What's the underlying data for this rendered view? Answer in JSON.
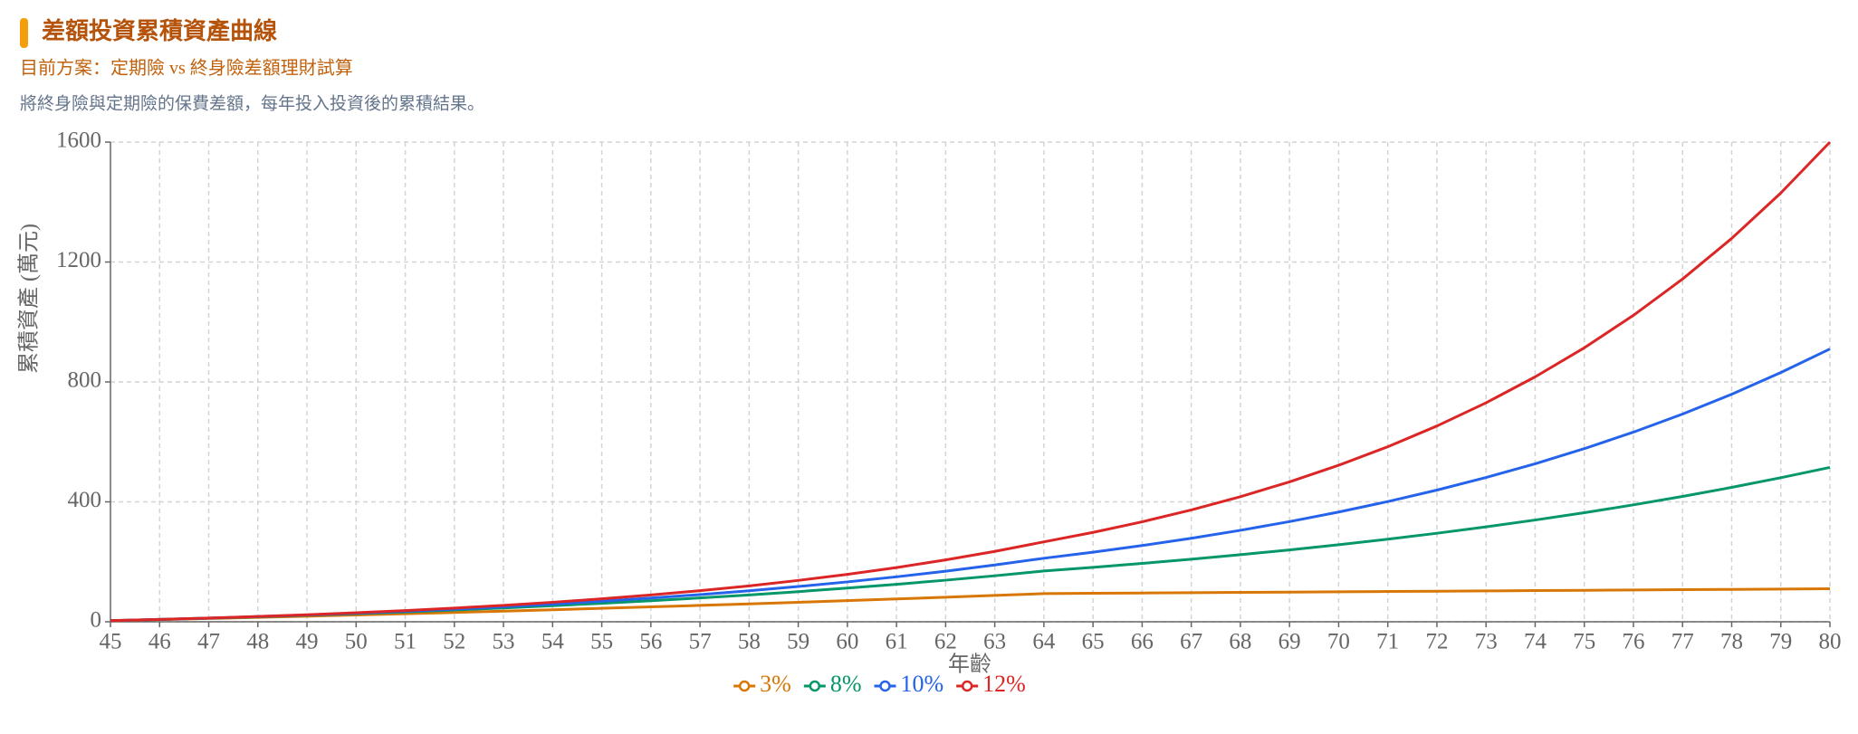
{
  "chart_data": {
    "type": "line",
    "title": "差額投資累積資產曲線",
    "subtitle": "目前方案：定期險 vs 終身險差額理財試算",
    "description": "將終身險與定期險的保費差額，每年投入投資後的累積結果。",
    "x_label": "年齡",
    "y_label": "累積資產 (萬元)",
    "x": [
      45,
      46,
      47,
      48,
      49,
      50,
      51,
      52,
      53,
      54,
      55,
      56,
      57,
      58,
      59,
      60,
      61,
      62,
      63,
      64,
      65,
      66,
      67,
      68,
      69,
      70,
      71,
      72,
      73,
      74,
      75,
      76,
      77,
      78,
      79,
      80
    ],
    "xlim": [
      45,
      80
    ],
    "ylim": [
      0,
      1600
    ],
    "yticks": [
      0,
      400,
      800,
      1200,
      1600
    ],
    "grid": true,
    "legend": "bottom",
    "series": [
      {
        "name": "3%",
        "color": "#d97706",
        "values": [
          3.5,
          7.1,
          10.8,
          14.6,
          18.6,
          22.6,
          26.8,
          31.1,
          35.6,
          40.1,
          44.8,
          49.7,
          54.7,
          59.8,
          65.1,
          70.6,
          76.2,
          81.9,
          87.9,
          94,
          95,
          96,
          97,
          98,
          99,
          100,
          101,
          102,
          103,
          104,
          105,
          106,
          107,
          108,
          109,
          110
        ]
      },
      {
        "name": "8%",
        "color": "#059669",
        "values": [
          3.7,
          7.7,
          12,
          16.7,
          21.7,
          27.1,
          33,
          39.4,
          46.2,
          53.6,
          61.6,
          70.2,
          79.5,
          89.6,
          100.5,
          112.3,
          125,
          138.7,
          153.4,
          169.3,
          181.5,
          194.6,
          208.6,
          223.6,
          239.7,
          257,
          275.5,
          295.3,
          316.6,
          339.4,
          363.8,
          390,
          418.1,
          448.2,
          480.5,
          515
        ]
      },
      {
        "name": "10%",
        "color": "#2563eb",
        "values": [
          3.7,
          7.8,
          12.2,
          17.2,
          22.6,
          28.5,
          35.1,
          42.3,
          50.2,
          59,
          68.6,
          79.2,
          90.7,
          103.5,
          117.6,
          133,
          150,
          168.7,
          189.3,
          211.9,
          232.1,
          254.3,
          278.5,
          305.1,
          334.2,
          366.1,
          401,
          439.3,
          481.2,
          527.1,
          577.4,
          632.5,
          692.8,
          758.9,
          831.3,
          910
        ]
      },
      {
        "name": "12%",
        "color": "#dc2626",
        "values": [
          3.7,
          7.8,
          12.5,
          17.7,
          23.5,
          30,
          37.3,
          45.6,
          54.7,
          65.1,
          76.6,
          89.3,
          103.7,
          119.8,
          137.9,
          158.2,
          180.9,
          206.3,
          234.7,
          266.6,
          298.2,
          333.5,
          373,
          417.2,
          466.7,
          522,
          583.8,
          653,
          730.4,
          817,
          913.8,
          1022.1,
          1143.2,
          1278.7,
          1430.2,
          1600
        ]
      }
    ]
  }
}
